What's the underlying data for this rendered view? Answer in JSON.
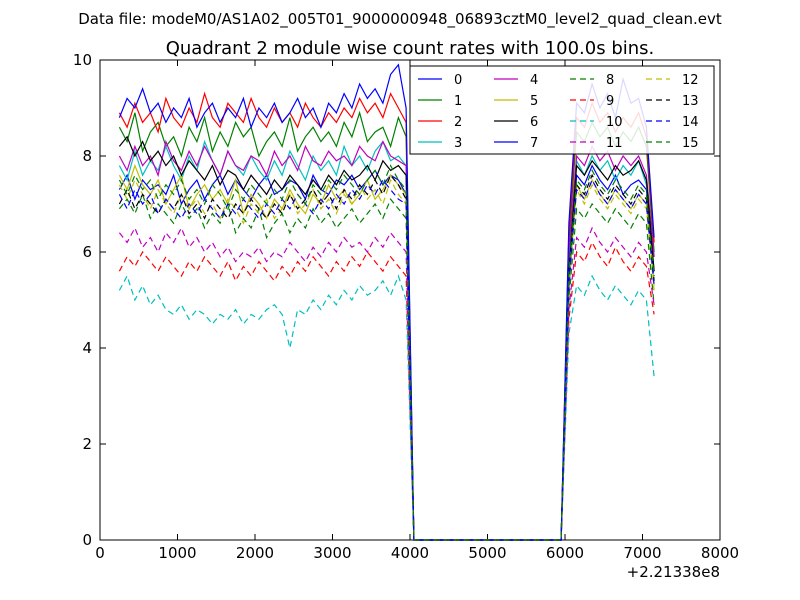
{
  "figure": {
    "suptitle": "Data file: modeM0/AS1A02_005T01_9000000948_06893cztM0_level2_quad_clean.evt",
    "title": "Quadrant 2 module wise count rates with 100.0s bins.",
    "x_offset_label": "+2.21338e8"
  },
  "chart_data": {
    "type": "line",
    "title": "Quadrant 2 module wise count rates with 100.0s bins.",
    "xlabel": "",
    "ylabel": "",
    "xlim": [
      0,
      8000
    ],
    "ylim": [
      0,
      10
    ],
    "x_ticks": [
      0,
      1000,
      2000,
      3000,
      4000,
      5000,
      6000,
      7000,
      8000
    ],
    "y_ticks": [
      0,
      2,
      4,
      6,
      8,
      10
    ],
    "x_offset": "+2.21338e8",
    "grid": false,
    "legend": {
      "placement": "top-right",
      "columns": 4
    },
    "x": [
      250,
      350,
      450,
      550,
      650,
      750,
      850,
      950,
      1050,
      1150,
      1250,
      1350,
      1450,
      1550,
      1650,
      1750,
      1850,
      1950,
      2050,
      2150,
      2250,
      2350,
      2450,
      2550,
      2650,
      2750,
      2850,
      2950,
      3050,
      3150,
      3250,
      3350,
      3450,
      3550,
      3650,
      3750,
      3850,
      3950,
      4050,
      4150,
      5950,
      6050,
      6150,
      6250,
      6350,
      6450,
      6550,
      6650,
      6750,
      6850,
      6950,
      7050,
      7150
    ],
    "series": [
      {
        "name": "0",
        "color": "#0000ff",
        "dash": "solid",
        "values": [
          7.3,
          7.6,
          7.1,
          7.5,
          7.3,
          7.4,
          7.2,
          7.6,
          7.0,
          7.3,
          7.5,
          7.1,
          7.4,
          7.6,
          7.2,
          7.5,
          7.3,
          7.1,
          7.4,
          7.6,
          7.2,
          7.3,
          7.5,
          7.4,
          7.1,
          7.6,
          7.3,
          7.2,
          7.5,
          7.4,
          7.6,
          7.3,
          7.5,
          7.7,
          7.4,
          7.6,
          7.5,
          7.2,
          0.0,
          0.0,
          0.0,
          5.2,
          7.6,
          7.4,
          7.8,
          7.5,
          7.3,
          7.6,
          7.2,
          7.4,
          7.5,
          7.3,
          5.6
        ]
      },
      {
        "name": "1",
        "color": "#008000",
        "dash": "solid",
        "values": [
          8.6,
          8.3,
          8.9,
          8.1,
          8.5,
          8.7,
          8.2,
          8.4,
          8.0,
          8.6,
          8.3,
          8.8,
          8.1,
          8.5,
          8.2,
          8.7,
          8.4,
          8.6,
          8.0,
          8.3,
          8.5,
          8.2,
          8.8,
          8.1,
          8.4,
          8.6,
          8.3,
          8.5,
          8.2,
          8.7,
          8.4,
          8.9,
          8.3,
          8.5,
          8.6,
          8.2,
          8.8,
          8.4,
          0.0,
          0.0,
          0.0,
          6.2,
          8.5,
          8.3,
          8.7,
          8.4,
          8.6,
          8.2,
          8.5,
          8.3,
          8.6,
          8.2,
          6.0
        ]
      },
      {
        "name": "2",
        "color": "#ff0000",
        "dash": "solid",
        "values": [
          8.9,
          8.6,
          9.1,
          8.7,
          8.9,
          8.5,
          9.2,
          8.8,
          8.6,
          9.0,
          8.7,
          9.3,
          8.8,
          8.6,
          9.1,
          8.9,
          8.7,
          9.2,
          8.8,
          8.6,
          9.0,
          8.7,
          8.9,
          8.6,
          9.1,
          8.8,
          8.6,
          8.9,
          8.7,
          9.0,
          8.8,
          9.2,
          8.9,
          9.1,
          8.8,
          9.3,
          9.0,
          8.7,
          0.0,
          0.0,
          0.0,
          6.4,
          8.8,
          8.6,
          9.1,
          8.7,
          8.9,
          8.5,
          8.8,
          8.6,
          8.9,
          8.4,
          6.2
        ]
      },
      {
        "name": "3",
        "color": "#00bfbf",
        "dash": "solid",
        "values": [
          7.8,
          7.5,
          8.1,
          7.6,
          7.9,
          7.7,
          8.2,
          7.8,
          7.5,
          8.0,
          7.7,
          8.3,
          7.9,
          7.6,
          8.1,
          7.8,
          7.6,
          8.0,
          7.7,
          7.5,
          7.9,
          7.6,
          8.1,
          7.8,
          7.5,
          8.0,
          7.7,
          7.9,
          7.6,
          8.2,
          7.8,
          8.0,
          7.7,
          8.1,
          8.3,
          7.9,
          8.0,
          7.8,
          0.0,
          0.0,
          0.0,
          5.8,
          7.9,
          7.6,
          8.0,
          7.7,
          7.9,
          7.5,
          7.8,
          7.6,
          7.9,
          7.4,
          5.9
        ]
      },
      {
        "name": "4",
        "color": "#bf00bf",
        "dash": "solid",
        "values": [
          8.0,
          7.7,
          8.2,
          7.8,
          8.0,
          7.6,
          8.3,
          7.9,
          7.7,
          8.1,
          7.8,
          8.2,
          7.9,
          7.6,
          8.1,
          7.8,
          7.7,
          8.0,
          7.9,
          7.6,
          8.1,
          7.8,
          8.0,
          7.7,
          8.2,
          7.9,
          7.8,
          8.1,
          7.9,
          8.0,
          7.8,
          8.2,
          8.0,
          7.9,
          8.3,
          8.0,
          7.9,
          7.8,
          0.0,
          0.0,
          0.0,
          6.0,
          8.0,
          7.8,
          8.2,
          7.9,
          8.1,
          7.7,
          8.0,
          7.8,
          8.0,
          7.6,
          5.9
        ]
      },
      {
        "name": "5",
        "color": "#bfbf00",
        "dash": "solid",
        "values": [
          7.6,
          7.3,
          7.8,
          7.4,
          7.2,
          7.5,
          7.0,
          7.3,
          7.6,
          6.9,
          7.2,
          7.4,
          7.1,
          7.3,
          7.0,
          7.5,
          6.8,
          7.2,
          7.0,
          6.7,
          7.1,
          6.9,
          7.3,
          7.0,
          6.8,
          7.2,
          7.0,
          7.4,
          7.1,
          7.3,
          7.0,
          7.2,
          7.5,
          7.1,
          7.3,
          7.6,
          7.4,
          7.2,
          0.0,
          0.0,
          0.0,
          5.4,
          7.4,
          7.1,
          7.5,
          7.2,
          7.0,
          7.3,
          7.1,
          6.9,
          7.2,
          7.0,
          5.3
        ]
      },
      {
        "name": "6",
        "color": "#000000",
        "dash": "solid",
        "values": [
          8.2,
          8.4,
          8.0,
          8.3,
          7.9,
          8.1,
          7.8,
          8.0,
          7.6,
          7.9,
          7.7,
          7.5,
          7.8,
          7.4,
          7.7,
          7.6,
          7.3,
          7.6,
          7.4,
          7.2,
          7.5,
          7.3,
          7.6,
          7.4,
          7.2,
          7.5,
          7.3,
          7.6,
          7.4,
          7.7,
          7.5,
          7.6,
          7.8,
          7.5,
          7.9,
          7.7,
          7.8,
          7.6,
          0.0,
          0.0,
          0.0,
          5.6,
          7.8,
          7.6,
          7.9,
          7.7,
          7.5,
          7.8,
          7.6,
          7.7,
          7.9,
          7.5,
          5.6
        ]
      },
      {
        "name": "7",
        "color": "#0000ff",
        "dash": "solid",
        "values": [
          8.8,
          9.2,
          9.0,
          9.4,
          8.9,
          9.1,
          8.7,
          9.0,
          8.8,
          9.2,
          8.6,
          8.9,
          9.1,
          8.7,
          9.0,
          8.8,
          9.2,
          8.6,
          9.0,
          8.8,
          9.1,
          8.7,
          8.9,
          9.2,
          8.8,
          9.0,
          8.6,
          9.1,
          8.9,
          9.3,
          9.0,
          9.5,
          9.2,
          9.4,
          9.1,
          9.7,
          9.9,
          9.0,
          0.0,
          0.0,
          0.0,
          6.6,
          9.1,
          8.9,
          9.5,
          9.0,
          9.3,
          8.8,
          9.6,
          9.1,
          9.2,
          8.6,
          6.3
        ]
      },
      {
        "name": "8",
        "color": "#008000",
        "dash": "dashed",
        "values": [
          6.9,
          7.1,
          6.8,
          7.2,
          6.7,
          7.0,
          6.8,
          6.6,
          7.0,
          6.7,
          6.9,
          6.5,
          6.8,
          6.6,
          7.0,
          6.4,
          6.7,
          6.5,
          6.9,
          6.3,
          6.6,
          6.8,
          6.4,
          6.7,
          6.5,
          6.9,
          6.6,
          6.8,
          6.5,
          6.7,
          6.9,
          6.6,
          6.8,
          7.0,
          6.7,
          7.1,
          6.9,
          6.7,
          0.0,
          0.0,
          0.0,
          5.0,
          6.9,
          6.7,
          7.0,
          6.8,
          6.6,
          6.9,
          6.7,
          6.5,
          6.8,
          6.6,
          4.9
        ]
      },
      {
        "name": "9",
        "color": "#ff0000",
        "dash": "dashed",
        "values": [
          5.6,
          5.9,
          5.7,
          6.0,
          5.8,
          5.6,
          5.9,
          5.7,
          5.5,
          5.8,
          5.6,
          5.9,
          5.7,
          5.5,
          5.8,
          5.4,
          5.7,
          5.5,
          5.8,
          5.6,
          5.4,
          5.7,
          5.5,
          5.8,
          5.6,
          5.9,
          5.7,
          5.5,
          5.8,
          5.6,
          5.9,
          5.7,
          6.0,
          5.8,
          5.6,
          5.9,
          5.7,
          5.5,
          0.0,
          0.0,
          0.0,
          4.6,
          6.0,
          5.8,
          6.2,
          5.9,
          5.7,
          6.1,
          5.8,
          5.6,
          5.9,
          5.7,
          4.7
        ]
      },
      {
        "name": "10",
        "color": "#00bfbf",
        "dash": "dashed",
        "values": [
          5.2,
          5.5,
          5.0,
          5.3,
          4.9,
          5.1,
          4.8,
          4.7,
          4.9,
          4.6,
          4.8,
          4.7,
          4.5,
          4.7,
          4.6,
          4.8,
          4.5,
          4.7,
          4.6,
          4.8,
          4.9,
          4.7,
          4.0,
          4.8,
          4.7,
          5.0,
          4.8,
          5.1,
          4.9,
          5.2,
          5.0,
          5.3,
          5.1,
          5.2,
          5.4,
          5.1,
          5.5,
          5.0,
          0.0,
          0.0,
          0.0,
          4.3,
          5.3,
          5.1,
          5.5,
          5.2,
          5.0,
          5.3,
          5.1,
          4.9,
          5.2,
          5.0,
          3.4
        ]
      },
      {
        "name": "11",
        "color": "#bf00bf",
        "dash": "dashed",
        "values": [
          6.4,
          6.2,
          6.5,
          6.1,
          6.3,
          6.0,
          6.4,
          6.2,
          6.5,
          6.1,
          6.3,
          6.0,
          6.2,
          5.9,
          6.1,
          5.8,
          6.0,
          5.9,
          6.1,
          5.8,
          6.0,
          5.9,
          6.2,
          6.0,
          5.8,
          6.1,
          5.9,
          6.2,
          6.0,
          6.3,
          6.1,
          6.2,
          6.0,
          6.3,
          6.1,
          6.4,
          6.2,
          6.0,
          0.0,
          0.0,
          0.0,
          4.8,
          6.3,
          6.1,
          6.5,
          6.2,
          6.0,
          6.3,
          6.1,
          5.9,
          6.2,
          6.0,
          4.9
        ]
      },
      {
        "name": "12",
        "color": "#bfbf00",
        "dash": "dashed",
        "values": [
          7.4,
          7.1,
          7.5,
          7.2,
          6.9,
          7.3,
          7.0,
          6.8,
          7.2,
          6.9,
          7.1,
          6.8,
          7.0,
          6.7,
          7.1,
          6.9,
          6.6,
          7.0,
          6.8,
          7.1,
          6.7,
          6.9,
          7.2,
          6.8,
          7.0,
          7.3,
          6.9,
          7.1,
          6.8,
          7.2,
          7.0,
          7.4,
          7.1,
          7.3,
          7.0,
          7.5,
          7.2,
          7.0,
          0.0,
          0.0,
          0.0,
          5.3,
          7.3,
          7.0,
          7.4,
          7.1,
          6.9,
          7.2,
          7.0,
          6.8,
          7.1,
          6.9,
          5.2
        ]
      },
      {
        "name": "13",
        "color": "#000000",
        "dash": "dashed",
        "values": [
          7.0,
          7.3,
          6.9,
          7.2,
          7.0,
          6.8,
          7.1,
          6.9,
          7.2,
          6.8,
          7.0,
          6.7,
          7.1,
          6.9,
          6.7,
          7.0,
          6.8,
          7.1,
          6.9,
          6.7,
          7.0,
          6.8,
          7.2,
          6.9,
          7.1,
          7.3,
          7.0,
          7.2,
          6.9,
          7.3,
          7.1,
          7.4,
          7.2,
          7.5,
          7.2,
          7.6,
          7.4,
          7.1,
          0.0,
          0.0,
          0.0,
          5.5,
          7.4,
          7.2,
          7.6,
          7.3,
          7.1,
          7.4,
          7.2,
          7.0,
          7.3,
          7.1,
          5.4
        ]
      },
      {
        "name": "14",
        "color": "#0000ff",
        "dash": "dashed",
        "values": [
          7.2,
          6.9,
          7.3,
          7.0,
          7.2,
          6.8,
          7.1,
          6.9,
          6.7,
          7.0,
          6.8,
          7.1,
          6.9,
          6.7,
          7.0,
          6.8,
          7.1,
          6.9,
          6.7,
          7.0,
          6.8,
          7.1,
          6.9,
          7.2,
          7.0,
          6.8,
          7.1,
          6.9,
          7.2,
          7.0,
          7.3,
          7.1,
          7.4,
          7.2,
          7.5,
          7.3,
          7.1,
          7.0,
          0.0,
          0.0,
          0.0,
          5.4,
          7.3,
          7.1,
          7.5,
          7.2,
          7.0,
          7.3,
          7.1,
          6.9,
          7.2,
          7.0,
          5.3
        ]
      },
      {
        "name": "15",
        "color": "#008000",
        "dash": "dashed",
        "values": [
          7.5,
          7.2,
          7.6,
          7.3,
          7.5,
          7.1,
          7.4,
          7.2,
          7.5,
          7.1,
          7.3,
          7.0,
          7.4,
          7.2,
          6.9,
          7.3,
          7.1,
          7.4,
          7.2,
          7.0,
          7.3,
          7.1,
          7.5,
          7.2,
          7.0,
          7.4,
          7.2,
          7.5,
          7.3,
          7.6,
          7.4,
          7.2,
          7.5,
          7.7,
          7.4,
          7.8,
          7.5,
          7.3,
          0.0,
          0.0,
          0.0,
          5.6,
          7.5,
          7.3,
          7.7,
          7.4,
          7.2,
          7.5,
          7.3,
          7.1,
          7.4,
          7.2,
          5.5
        ]
      }
    ]
  }
}
